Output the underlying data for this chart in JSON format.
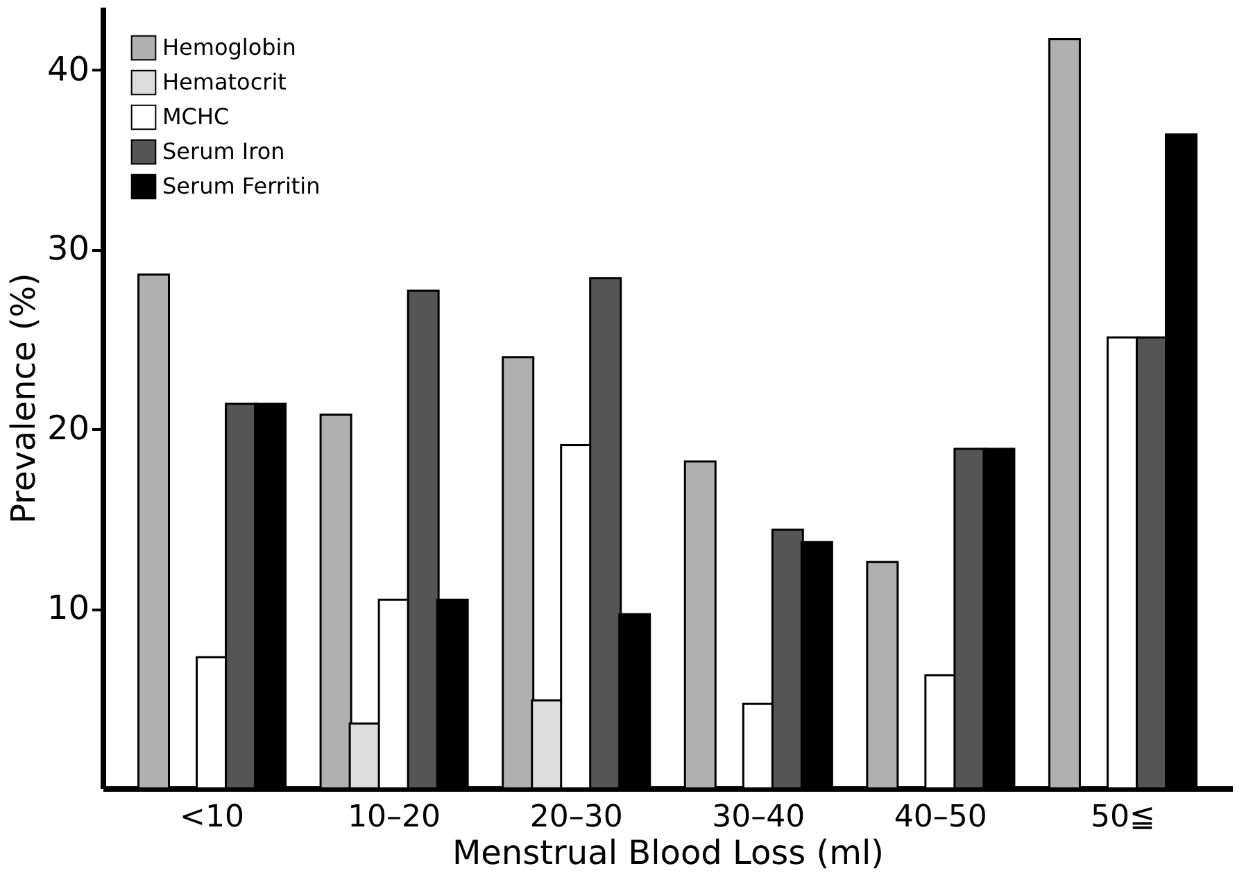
{
  "chart_data": {
    "type": "bar",
    "xlabel": "Menstrual  Blood  Loss  (ml)",
    "ylabel": "Prevalence (%)",
    "categories": [
      "<10",
      "10–20",
      "20–30",
      "30–40",
      "40–50",
      "50≦"
    ],
    "series": [
      {
        "name": "Hemoglobin",
        "color": "#b0b0b0",
        "values": [
          28.6,
          20.8,
          24.0,
          18.2,
          12.6,
          41.7
        ]
      },
      {
        "name": "Hematocrit",
        "color": "#dcdcdc",
        "values": [
          null,
          3.6,
          4.9,
          null,
          null,
          null
        ]
      },
      {
        "name": "MCHC",
        "color": "#ffffff",
        "values": [
          7.3,
          10.5,
          19.1,
          4.7,
          6.3,
          25.1
        ]
      },
      {
        "name": "Serum Iron",
        "color": "#555555",
        "values": [
          21.4,
          27.7,
          28.4,
          14.4,
          18.9,
          25.1
        ]
      },
      {
        "name": "Serum Ferritin",
        "color": "#000000",
        "values": [
          21.4,
          10.5,
          9.7,
          13.7,
          18.9,
          36.4
        ]
      }
    ],
    "ylim": [
      0,
      43.5
    ],
    "yticks": [
      10,
      20,
      30,
      40
    ],
    "grid": false,
    "legend": "top left"
  }
}
